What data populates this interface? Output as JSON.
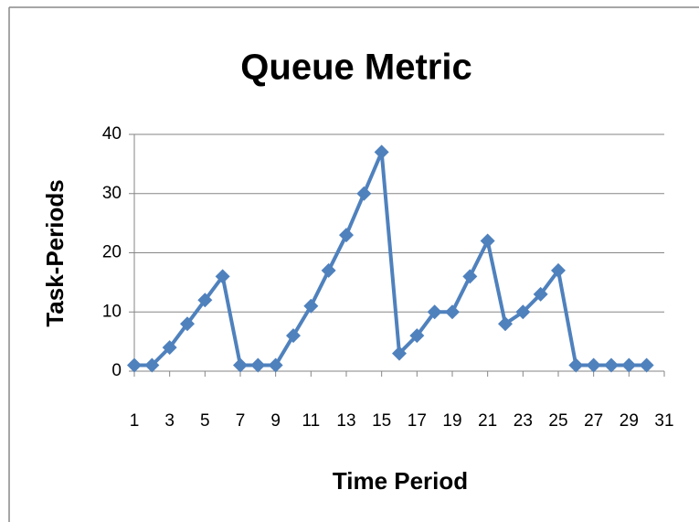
{
  "chart_data": {
    "type": "line",
    "title": "Queue Metric",
    "x_label": "Time Period",
    "y_label": "Task-Periods",
    "x": [
      1,
      2,
      3,
      4,
      5,
      6,
      7,
      8,
      9,
      10,
      11,
      12,
      13,
      14,
      15,
      16,
      17,
      18,
      19,
      20,
      21,
      22,
      23,
      24,
      25,
      26,
      27,
      28,
      29,
      30
    ],
    "series": [
      {
        "name": "Queue",
        "color": "#4f81bd",
        "values": [
          1,
          1,
          4,
          8,
          12,
          16,
          1,
          1,
          1,
          6,
          11,
          17,
          23,
          30,
          37,
          3,
          6,
          10,
          10,
          16,
          22,
          8,
          10,
          13,
          17,
          1,
          1,
          1,
          1,
          1
        ]
      }
    ],
    "xlim": [
      1,
      31
    ],
    "xticks": [
      1,
      3,
      5,
      7,
      9,
      11,
      13,
      15,
      17,
      19,
      21,
      23,
      25,
      27,
      29,
      31
    ],
    "ylim": [
      0,
      40
    ],
    "yticks": [
      0,
      10,
      20,
      30,
      40
    ],
    "grid": true
  }
}
